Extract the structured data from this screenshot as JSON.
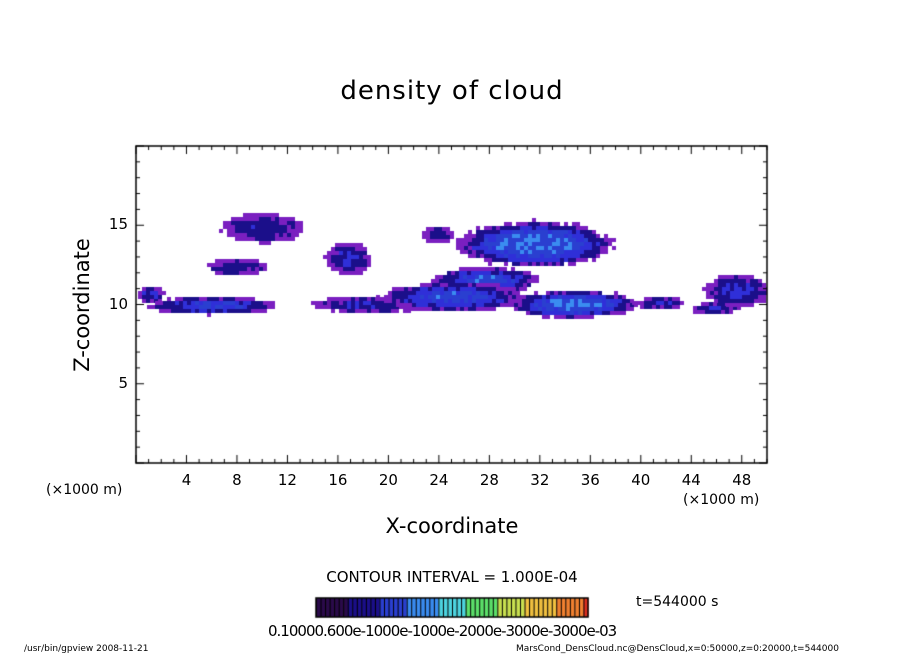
{
  "chart_data": {
    "type": "heatmap",
    "title": "density of cloud",
    "xlabel": "X-coordinate",
    "ylabel": "Z-coordinate",
    "x_unit_label": "(×1000 m)",
    "xlim": [
      0,
      50
    ],
    "ylim": [
      0,
      20
    ],
    "xticks": [
      4,
      8,
      12,
      16,
      20,
      24,
      28,
      32,
      36,
      40,
      44,
      48
    ],
    "yticks": [
      5,
      10,
      15
    ],
    "contour_interval_text": "CONTOUR INTERVAL = 1.000E-04",
    "time_text": "t=544000 s",
    "colorbar_tick_text": "0.10000.600e-1000e-1000e-2000e-3000e-3000e-03",
    "colormap": [
      "#2a0a4a",
      "#1b0f8a",
      "#2a3fd0",
      "#3a8cf0",
      "#4dd4e0",
      "#5ce06a",
      "#c8e050",
      "#f0c040",
      "#f08030",
      "#e03020"
    ],
    "cloud_fill": "#7a1fc0",
    "cloud_core": "#2f2fd8",
    "regions": [
      {
        "x": [
          6.7,
          13.0
        ],
        "z": [
          14.0,
          15.9
        ],
        "level": 0.2
      },
      {
        "x": [
          5.5,
          10.2
        ],
        "z": [
          11.9,
          13.0
        ],
        "level": 0.2
      },
      {
        "x": [
          15.0,
          18.5
        ],
        "z": [
          12.0,
          14.0
        ],
        "level": 0.3
      },
      {
        "x": [
          22.5,
          25.0
        ],
        "z": [
          14.0,
          15.0
        ],
        "level": 0.2
      },
      {
        "x": [
          25.5,
          37.5
        ],
        "z": [
          12.5,
          15.3
        ],
        "level": 0.6
      },
      {
        "x": [
          23.5,
          31.5
        ],
        "z": [
          10.8,
          12.5
        ],
        "level": 0.45
      },
      {
        "x": [
          0.0,
          2.0
        ],
        "z": [
          10.2,
          11.2
        ],
        "level": 0.3
      },
      {
        "x": [
          1.0,
          11.0
        ],
        "z": [
          9.5,
          10.6
        ],
        "level": 0.4
      },
      {
        "x": [
          14.0,
          22.5
        ],
        "z": [
          9.6,
          10.6
        ],
        "level": 0.25
      },
      {
        "x": [
          19.5,
          30.5
        ],
        "z": [
          9.7,
          11.5
        ],
        "level": 0.45
      },
      {
        "x": [
          29.5,
          39.5
        ],
        "z": [
          9.3,
          11.0
        ],
        "level": 0.55
      },
      {
        "x": [
          39.5,
          43.5
        ],
        "z": [
          9.8,
          10.6
        ],
        "level": 0.25
      },
      {
        "x": [
          44.0,
          47.5
        ],
        "z": [
          9.5,
          10.3
        ],
        "level": 0.25
      },
      {
        "x": [
          45.0,
          50.0
        ],
        "z": [
          10.0,
          12.0
        ],
        "level": 0.3
      }
    ]
  },
  "footer": {
    "left": "/usr/bin/gpview  2008-11-21",
    "right": "MarsCond_DensCloud.nc@DensCloud,x=0:50000,z=0:20000,t=544000"
  }
}
